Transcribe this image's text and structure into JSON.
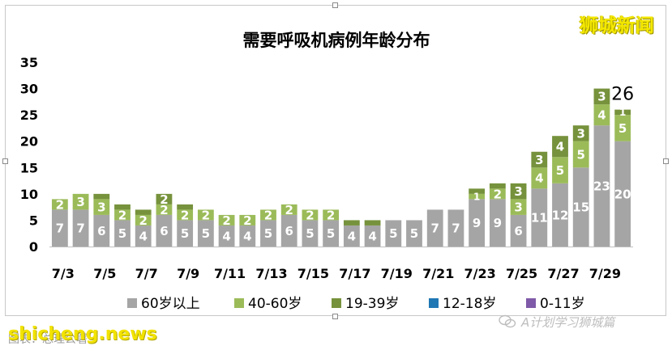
{
  "branding": {
    "logo_text": "狮城新闻",
    "site_watermark": "shicheng.news",
    "caption": "图表：总理公署",
    "account": "A计划学习狮城篇"
  },
  "chart_data": {
    "type": "bar",
    "stacked": true,
    "title": "需要呼吸机病例年龄分布",
    "xlabel": "",
    "ylabel": "",
    "ylim": [
      0,
      35
    ],
    "yticks": [
      0,
      5,
      10,
      15,
      20,
      25,
      30,
      35
    ],
    "grid": false,
    "legend_position": "bottom",
    "categories": [
      "7/3",
      "7/4",
      "7/5",
      "7/6",
      "7/7",
      "7/8",
      "7/9",
      "7/10",
      "7/11",
      "7/12",
      "7/13",
      "7/14",
      "7/15",
      "7/16",
      "7/17",
      "7/18",
      "7/19",
      "7/20",
      "7/21",
      "7/22",
      "7/23",
      "7/24",
      "7/25",
      "7/26",
      "7/27",
      "7/28",
      "7/29",
      "7/30"
    ],
    "tick_labels": [
      "7/3",
      "7/5",
      "7/7",
      "7/9",
      "7/11",
      "7/13",
      "7/15",
      "7/17",
      "7/19",
      "7/21",
      "7/23",
      "7/25",
      "7/27",
      "7/29"
    ],
    "series": [
      {
        "name": "60岁以上",
        "color": "#a5a5a5",
        "values": [
          7,
          7,
          6,
          5,
          4,
          6,
          5,
          5,
          4,
          4,
          5,
          6,
          5,
          5,
          4,
          4,
          5,
          5,
          7,
          7,
          9,
          9,
          6,
          11,
          12,
          15,
          23,
          20
        ]
      },
      {
        "name": "40-60岁",
        "color": "#9bbb59",
        "values": [
          2,
          3,
          3,
          2,
          2,
          2,
          2,
          2,
          2,
          2,
          2,
          2,
          2,
          2,
          0,
          0,
          0,
          0,
          0,
          0,
          1,
          2,
          3,
          4,
          5,
          5,
          4,
          5
        ]
      },
      {
        "name": "19-39岁",
        "color": "#76923c",
        "values": [
          0,
          0,
          1,
          1,
          1,
          2,
          1,
          0,
          0,
          0,
          0,
          0,
          0,
          0,
          1,
          1,
          0,
          0,
          0,
          0,
          1,
          1,
          3,
          3,
          4,
          3,
          3,
          1
        ]
      },
      {
        "name": "12-18岁",
        "color": "#1f77b4",
        "values": [
          0,
          0,
          0,
          0,
          0,
          0,
          0,
          0,
          0,
          0,
          0,
          0,
          0,
          0,
          0,
          0,
          0,
          0,
          0,
          0,
          0,
          0,
          0,
          0,
          0,
          0,
          0,
          0
        ]
      },
      {
        "name": "0-11岁",
        "color": "#7f5aa8",
        "values": [
          0,
          0,
          0,
          0,
          0,
          0,
          0,
          0,
          0,
          0,
          0,
          0,
          0,
          0,
          0,
          0,
          0,
          0,
          0,
          0,
          0,
          0,
          0,
          0,
          0,
          0,
          0,
          0
        ]
      }
    ],
    "segment_labels": [
      [
        7,
        7,
        6,
        5,
        4,
        6,
        5,
        5,
        4,
        4,
        5,
        6,
        5,
        5,
        4,
        4,
        5,
        5,
        7,
        7,
        9,
        9,
        6,
        11,
        12,
        15,
        23,
        20
      ],
      [
        2,
        3,
        3,
        2,
        2,
        2,
        2,
        2,
        2,
        2,
        2,
        2,
        2,
        2,
        null,
        null,
        null,
        null,
        null,
        null,
        1,
        2,
        3,
        4,
        5,
        5,
        4,
        5
      ],
      [
        null,
        null,
        null,
        null,
        null,
        2,
        null,
        null,
        null,
        null,
        null,
        null,
        null,
        null,
        null,
        null,
        null,
        null,
        null,
        null,
        null,
        null,
        3,
        3,
        4,
        3,
        3,
        1
      ],
      [],
      []
    ],
    "total_annotation": {
      "category": "7/30",
      "value": 26
    }
  }
}
